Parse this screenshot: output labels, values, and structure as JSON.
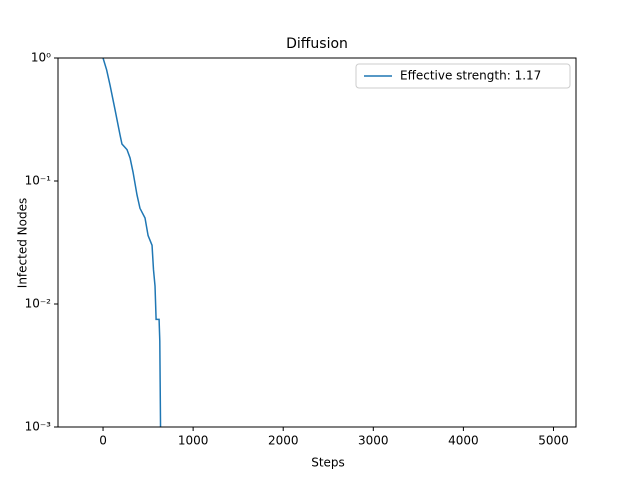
{
  "chart_data": {
    "type": "line",
    "title": "Diffusion",
    "x_label": "Steps",
    "y_label": "Infected Nodes",
    "x": [
      0,
      40,
      78,
      133,
      189,
      210,
      266,
      300,
      333,
      377,
      410,
      466,
      500,
      544,
      560,
      577,
      589,
      622,
      630,
      640,
      5000
    ],
    "series": [
      {
        "name": "Effective strength: 1.17",
        "color": "#1f77b4",
        "values": [
          1,
          0.8,
          0.6,
          0.38,
          0.236,
          0.2,
          0.18,
          0.154,
          0.118,
          0.077,
          0.06,
          0.05,
          0.036,
          0.03,
          0.019,
          0.014,
          0.0075,
          0.0075,
          0.005,
          0,
          0
        ]
      }
    ],
    "xlim": [
      -500,
      5250
    ],
    "ylim": [
      0.001,
      1
    ],
    "log_y": true,
    "xticks": [
      0,
      1000,
      2000,
      3000,
      4000,
      5000
    ],
    "yticks": [
      {
        "value": 0.001,
        "label": "10⁻³"
      },
      {
        "value": 0.01,
        "label": "10⁻²"
      },
      {
        "value": 0.1,
        "label": "10⁻¹"
      },
      {
        "value": 1,
        "label": "10⁰"
      }
    ],
    "legend": "upper right",
    "grid": false
  }
}
